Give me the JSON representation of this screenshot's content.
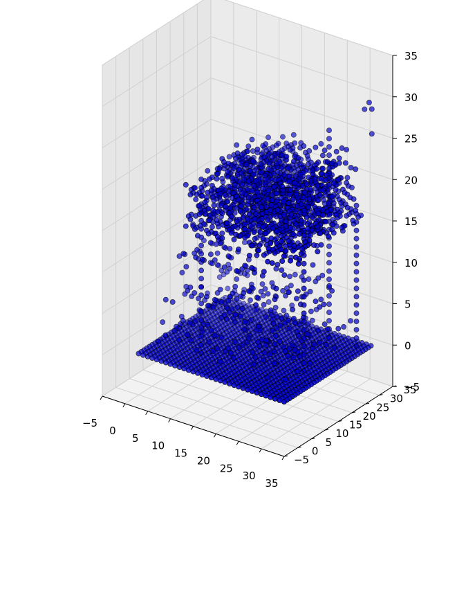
{
  "chart_data": {
    "type": "scatter",
    "projection": "3d",
    "title": "",
    "xlabel": "",
    "ylabel": "",
    "zlabel": "",
    "xlim": [
      -5,
      35
    ],
    "ylim": [
      -5,
      35
    ],
    "zlim": [
      -5,
      35
    ],
    "x_ticks": [
      "−5",
      "0",
      "5",
      "10",
      "15",
      "20",
      "25",
      "30",
      "35"
    ],
    "y_ticks": [
      "−5",
      "0",
      "5",
      "10",
      "15",
      "20",
      "25",
      "30",
      "35"
    ],
    "z_ticks": [
      "−5",
      "0",
      "5",
      "10",
      "15",
      "20",
      "25",
      "30",
      "35"
    ],
    "grid": true,
    "legend": "none",
    "marker_color": "#0000cc",
    "marker_edge_color": "#000000",
    "pane_colors": [
      "#f2f2f2",
      "#e6e6e6",
      "#ebebeb"
    ],
    "series": [
      {
        "marker": "o",
        "voxel_layers": [
          {
            "z": 0,
            "x": [
              0,
              32
            ],
            "y": [
              0,
              32
            ],
            "step": 1
          },
          {
            "z": 1,
            "x": [
              2,
              30
            ],
            "y": [
              4,
              30
            ],
            "step": 1.5,
            "density": 0.45
          },
          {
            "z": 5,
            "x": [
              3,
              27
            ],
            "y": [
              5,
              28
            ],
            "step": 1.5,
            "density": 0.4
          },
          {
            "z": 10,
            "x": [
              3,
              24
            ],
            "y": [
              6,
              27
            ],
            "step": 1.5,
            "density": 0.3
          },
          {
            "z": 15,
            "x": [
              8,
              31
            ],
            "y": [
              4,
              30
            ],
            "step": 1,
            "density": 0.85
          },
          {
            "z": 18,
            "x": [
              8,
              31
            ],
            "y": [
              4,
              30
            ],
            "step": 1,
            "density": 0.7
          },
          {
            "z": 21,
            "x": [
              12,
              31
            ],
            "y": [
              6,
              28
            ],
            "step": 1,
            "density": 0.6
          }
        ],
        "columns": [
          {
            "x": 28,
            "y": 14,
            "z": [
              0,
              20
            ]
          },
          {
            "x": 9,
            "y": 8,
            "z": [
              0,
              21
            ]
          },
          {
            "x": 30,
            "y": 30,
            "z": [
              0,
              16
            ]
          },
          {
            "x": 24,
            "y": 30,
            "z": [
              0,
              25
            ]
          }
        ],
        "points": [
          {
            "x": 31,
            "y": 33,
            "z": 29
          },
          {
            "x": 30,
            "y": 33,
            "z": 28
          },
          {
            "x": 31,
            "y": 34,
            "z": 28
          },
          {
            "x": 31,
            "y": 34,
            "z": 25
          }
        ]
      }
    ]
  }
}
